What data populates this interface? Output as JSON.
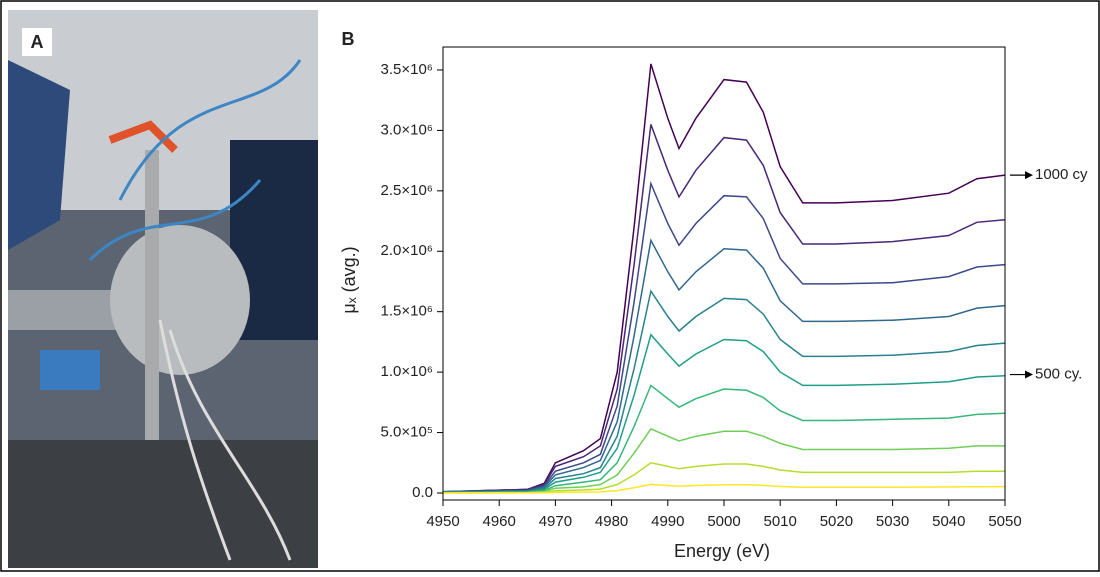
{
  "panel_labels": [
    "A",
    "B"
  ],
  "chart_data": {
    "type": "line",
    "x_label": "Energy (eV)",
    "y_label": "μₓ (avg.)",
    "x": [
      4950,
      4965,
      4968,
      4970,
      4975,
      4978,
      4981,
      4984,
      4987,
      4990,
      4992,
      4995,
      5000,
      5004,
      5007,
      5010,
      5014,
      5020,
      5030,
      5040,
      5045,
      5050
    ],
    "series": [
      {
        "color": "#440154",
        "values": [
          10000,
          30000,
          80000,
          250000,
          350000,
          450000,
          1000000,
          2200000,
          3550000,
          3100000,
          2850000,
          3100000,
          3420000,
          3400000,
          3150000,
          2700000,
          2400000,
          2400000,
          2420000,
          2480000,
          2600000,
          2630000
        ]
      },
      {
        "color": "#482878",
        "values": [
          10000,
          30000,
          70000,
          220000,
          300000,
          390000,
          860000,
          1890000,
          3050000,
          2670000,
          2450000,
          2670000,
          2940000,
          2920000,
          2710000,
          2320000,
          2060000,
          2060000,
          2080000,
          2130000,
          2240000,
          2260000
        ]
      },
      {
        "color": "#3e4989",
        "values": [
          10000,
          20000,
          60000,
          180000,
          250000,
          320000,
          720000,
          1580000,
          2560000,
          2230000,
          2050000,
          2230000,
          2460000,
          2450000,
          2270000,
          1940000,
          1730000,
          1730000,
          1740000,
          1790000,
          1870000,
          1890000
        ]
      },
      {
        "color": "#31688e",
        "values": [
          10000,
          20000,
          50000,
          150000,
          210000,
          270000,
          590000,
          1300000,
          2090000,
          1830000,
          1680000,
          1830000,
          2020000,
          2010000,
          1860000,
          1590000,
          1420000,
          1420000,
          1430000,
          1460000,
          1530000,
          1550000
        ]
      },
      {
        "color": "#26828e",
        "values": [
          5000,
          14000,
          38000,
          120000,
          160000,
          210000,
          470000,
          1030000,
          1670000,
          1460000,
          1340000,
          1460000,
          1610000,
          1600000,
          1480000,
          1270000,
          1130000,
          1130000,
          1140000,
          1170000,
          1220000,
          1240000
        ]
      },
      {
        "color": "#1f9e89",
        "values": [
          4000,
          11000,
          30000,
          90000,
          130000,
          170000,
          370000,
          810000,
          1310000,
          1150000,
          1050000,
          1150000,
          1270000,
          1260000,
          1170000,
          1000000,
          890000,
          890000,
          900000,
          920000,
          960000,
          970000
        ]
      },
      {
        "color": "#35b779",
        "values": [
          3000,
          8000,
          20000,
          60000,
          90000,
          110000,
          250000,
          550000,
          890000,
          780000,
          710000,
          780000,
          860000,
          850000,
          790000,
          680000,
          600000,
          600000,
          610000,
          620000,
          650000,
          660000
        ]
      },
      {
        "color": "#6ece58",
        "values": [
          2000,
          5000,
          12000,
          40000,
          50000,
          70000,
          150000,
          330000,
          530000,
          470000,
          430000,
          470000,
          510000,
          510000,
          470000,
          410000,
          360000,
          360000,
          360000,
          370000,
          390000,
          390000
        ]
      },
      {
        "color": "#b5de2b",
        "values": [
          1000,
          2000,
          6000,
          18000,
          25000,
          32000,
          70000,
          150000,
          250000,
          220000,
          200000,
          220000,
          240000,
          240000,
          220000,
          190000,
          170000,
          170000,
          170000,
          170000,
          180000,
          180000
        ]
      },
      {
        "color": "#fde725",
        "values": [
          0,
          1000,
          2000,
          5000,
          7000,
          9000,
          20000,
          44000,
          71000,
          62000,
          57000,
          62000,
          68000,
          68000,
          63000,
          54000,
          48000,
          48000,
          48000,
          50000,
          52000,
          53000
        ]
      }
    ],
    "xlim": [
      4950,
      5050
    ],
    "xticks": [
      4950,
      4960,
      4970,
      4980,
      4990,
      5000,
      5010,
      5020,
      5030,
      5040,
      5050
    ],
    "ylim": [
      -58000,
      3690000
    ],
    "yticks": [
      {
        "value": 0,
        "label": "0.0"
      },
      {
        "value": 500000,
        "label": "5.0×10⁵"
      },
      {
        "value": 1000000,
        "label": "1.0×10⁶"
      },
      {
        "value": 1500000,
        "label": "1.5×10⁶"
      },
      {
        "value": 2000000,
        "label": "2.0×10⁶"
      },
      {
        "value": 2500000,
        "label": "2.5×10⁶"
      },
      {
        "value": 3000000,
        "label": "3.0×10⁶"
      },
      {
        "value": 3500000,
        "label": "3.5×10⁶"
      }
    ],
    "annotations": [
      {
        "text": "1000 cy",
        "y": 2630000
      },
      {
        "text": "500 cy.",
        "y": 980000
      }
    ]
  }
}
